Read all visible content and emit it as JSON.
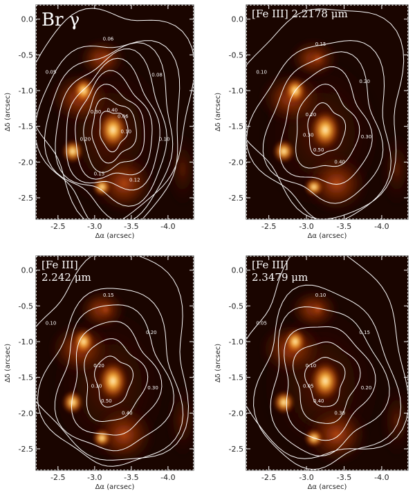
{
  "chart_data": [
    {
      "type": "heatmap",
      "title": "Br γ",
      "title_lines": [
        "Br γ"
      ],
      "xlabel": "Δα (arcsec)",
      "ylabel": "Δδ (arcsec)",
      "xlim": [
        -2.2,
        -4.35
      ],
      "ylim": [
        -2.8,
        0.2
      ],
      "xticks": [
        -2.5,
        -3.0,
        -3.5,
        -4.0
      ],
      "xtick_labels": [
        "-2.5",
        "-3.0",
        "-3.5",
        "-4.0"
      ],
      "yticks": [
        0.0,
        -0.5,
        -1.0,
        -1.5,
        -2.0,
        -2.5
      ],
      "ytick_labels": [
        "0.0",
        "-0.5",
        "-1.0",
        "-1.5",
        "-2.0",
        "-2.5"
      ],
      "contour_levels": [
        0.05,
        0.06,
        0.08,
        0.1,
        0.12,
        0.15,
        0.2,
        0.3,
        0.4
      ],
      "contour_labels": [
        "0.05",
        "0.06",
        "0.08",
        "0.10",
        "0.12",
        "0.15",
        "0.20",
        "0.30",
        "0.40",
        "0.06",
        "0.10"
      ],
      "colormap": "hot",
      "contour_color": "#ffffff"
    },
    {
      "type": "heatmap",
      "title": "[Fe III] 2.2178 μm",
      "title_lines": [
        "[Fe III] 2.2178 μm"
      ],
      "xlabel": "Δα (arcsec)",
      "ylabel": "Δδ (arcsec)",
      "xlim": [
        -2.2,
        -4.35
      ],
      "ylim": [
        -2.8,
        0.2
      ],
      "xticks": [
        -2.5,
        -3.0,
        -3.5,
        -4.0
      ],
      "xtick_labels": [
        "-2.5",
        "-3.0",
        "-3.5",
        "-4.0"
      ],
      "yticks": [
        0.0,
        -0.5,
        -1.0,
        -1.5,
        -2.0,
        -2.5
      ],
      "ytick_labels": [
        "0.0",
        "-0.5",
        "-1.0",
        "-1.5",
        "-2.0",
        "-2.5"
      ],
      "contour_levels": [
        0.1,
        0.15,
        0.2,
        0.3,
        0.4,
        0.5
      ],
      "contour_labels": [
        "0.10",
        "0.15",
        "0.20",
        "0.30",
        "0.40",
        "0.50",
        "0.30",
        "0.20"
      ],
      "colormap": "hot",
      "contour_color": "#ffffff"
    },
    {
      "type": "heatmap",
      "title": "[Fe III] 2.242 μm",
      "title_lines": [
        "[Fe III]",
        "2.242 μm"
      ],
      "xlabel": "Δα (arcsec)",
      "ylabel": "Δδ (arcsec)",
      "xlim": [
        -2.2,
        -4.35
      ],
      "ylim": [
        -2.8,
        0.2
      ],
      "xticks": [
        -2.5,
        -3.0,
        -3.5,
        -4.0
      ],
      "xtick_labels": [
        "-2.5",
        "-3.0",
        "-3.5",
        "-4.0"
      ],
      "yticks": [
        0.0,
        -0.5,
        -1.0,
        -1.5,
        -2.0,
        -2.5
      ],
      "ytick_labels": [
        "0.0",
        "-0.5",
        "-1.0",
        "-1.5",
        "-2.0",
        "-2.5"
      ],
      "contour_levels": [
        0.1,
        0.15,
        0.2,
        0.3,
        0.4,
        0.5
      ],
      "contour_labels": [
        "0.10",
        "0.15",
        "0.20",
        "0.30",
        "0.40",
        "0.50",
        "0.10",
        "0.20"
      ],
      "colormap": "hot",
      "contour_color": "#ffffff"
    },
    {
      "type": "heatmap",
      "title": "[Fe III] 2.3479 μm",
      "title_lines": [
        "[Fe III]",
        "2.3479 μm"
      ],
      "xlabel": "Δα (arcsec)",
      "ylabel": "Δδ (arcsec)",
      "xlim": [
        -2.2,
        -4.35
      ],
      "ylim": [
        -2.8,
        0.2
      ],
      "xticks": [
        -2.5,
        -3.0,
        -3.5,
        -4.0
      ],
      "xtick_labels": [
        "-2.5",
        "-3.0",
        "-3.5",
        "-4.0"
      ],
      "yticks": [
        0.0,
        -0.5,
        -1.0,
        -1.5,
        -2.0,
        -2.5
      ],
      "ytick_labels": [
        "0.0",
        "-0.5",
        "-1.0",
        "-1.5",
        "-2.0",
        "-2.5"
      ],
      "contour_levels": [
        0.05,
        0.1,
        0.15,
        0.2,
        0.3,
        0.4
      ],
      "contour_labels": [
        "0.05",
        "0.10",
        "0.15",
        "0.20",
        "0.30",
        "0.40",
        "0.05",
        "0.10"
      ],
      "colormap": "hot",
      "contour_color": "#ffffff"
    }
  ]
}
